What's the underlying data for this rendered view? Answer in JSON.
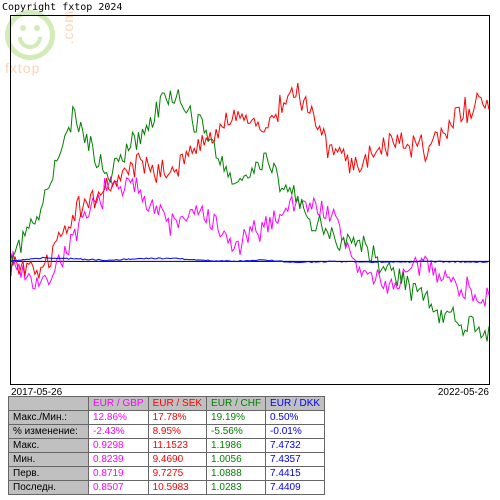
{
  "copyright": "Copyright fxtop 2024",
  "watermark_brand": "fxtop",
  "watermark_dotcom": ".com",
  "chart": {
    "type": "line",
    "background_color": "#ffffff",
    "border_color": "#000000",
    "baseline_color": "#000000",
    "x_start_label": "2017-05-26",
    "x_end_label": "2022-05-26",
    "ylim": [
      -10,
      20
    ],
    "baseline_y": 0,
    "series": [
      {
        "name": "EUR / GBP",
        "color": "#ff00ff"
      },
      {
        "name": "EUR / SEK",
        "color": "#ff0000"
      },
      {
        "name": "EUR / CHF",
        "color": "#008000"
      },
      {
        "name": "EUR / DKK",
        "color": "#0000ff"
      }
    ]
  },
  "table": {
    "header_bg": "#c0c0c0",
    "row_labels": [
      "Макс./Мин.:",
      "% изменение:",
      "Макс.",
      "Мин.",
      "Перв.",
      "Последн."
    ],
    "columns": [
      {
        "label": "EUR / GBP",
        "color": "#ff00ff",
        "values": [
          "12.86%",
          "-2.43%",
          "0.9298",
          "0.8239",
          "0.8719",
          "0.8507"
        ]
      },
      {
        "label": "EUR / SEK",
        "color": "#ff0000",
        "values": [
          "17.78%",
          "8.95%",
          "11.1523",
          "9.4690",
          "9.7275",
          "10.5983"
        ]
      },
      {
        "label": "EUR / CHF",
        "color": "#008000",
        "values": [
          "19.19%",
          "-5.56%",
          "1.1986",
          "1.0056",
          "1.0888",
          "1.0283"
        ]
      },
      {
        "label": "EUR / DKK",
        "color": "#0000ff",
        "values": [
          "0.50%",
          "-0.01%",
          "7.4732",
          "7.4357",
          "7.4415",
          "7.4409"
        ]
      }
    ]
  }
}
